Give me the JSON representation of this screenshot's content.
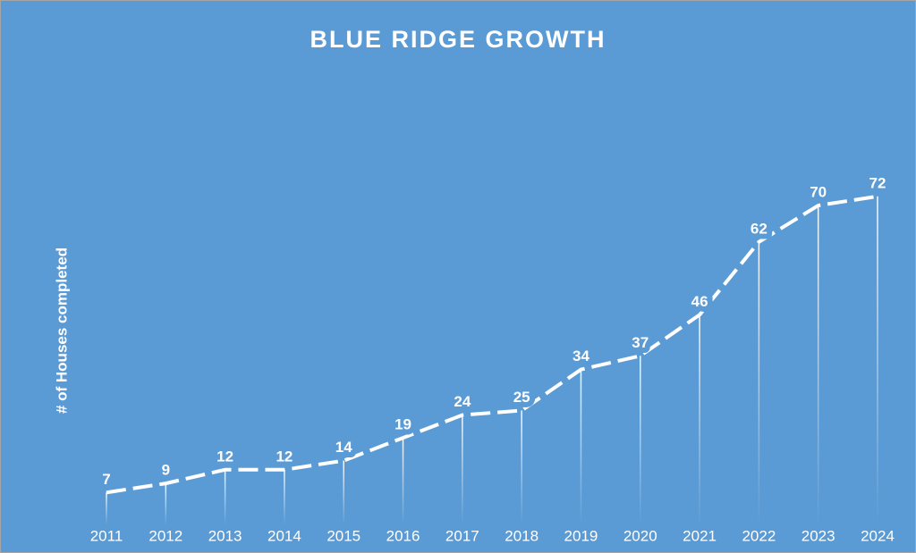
{
  "chart_data": {
    "type": "line",
    "title": "BLUE RIDGE GROWTH",
    "y_label": "# of Houses completed",
    "categories": [
      "2011",
      "2012",
      "2013",
      "2014",
      "2015",
      "2016",
      "2017",
      "2018",
      "2019",
      "2020",
      "2021",
      "2022",
      "2023",
      "2024"
    ],
    "values": [
      7,
      9,
      12,
      12,
      14,
      19,
      24,
      25,
      34,
      37,
      46,
      62,
      70,
      72
    ],
    "color": "#ffffff",
    "background": "#5b9bd5",
    "ylim": [
      0,
      80
    ],
    "drop_lines": true,
    "data_labels": true
  }
}
